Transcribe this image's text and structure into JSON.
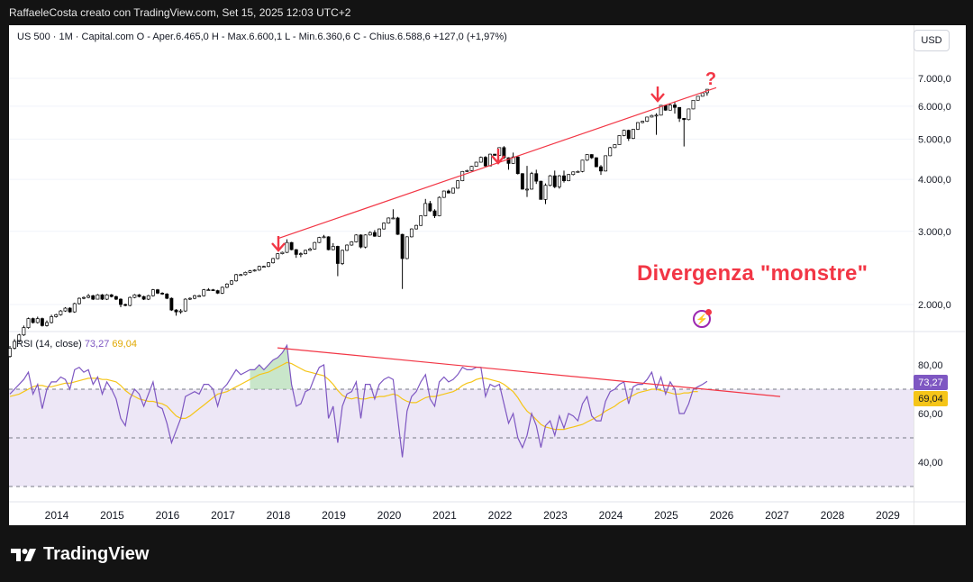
{
  "header": {
    "title": "RaffaeleCosta creato con TradingView.com, Set 15, 2025 12:03 UTC+2"
  },
  "legend": {
    "text": "US 500 · 1M · Capital.com  O - Aper.6.465,0  H - Max.6.600,1  L - Min.6.360,6  C - Chius.6.588,6  +127,0 (+1,97%)"
  },
  "currency_button": "USD",
  "annotations": {
    "note": "Divergenza \"monstre\"",
    "question": "?"
  },
  "rsi_legend": {
    "label": "RSI (14, close)",
    "value": "73,27",
    "ma_value": "69,04"
  },
  "rsi_tags": {
    "rsi": "73,27",
    "ma": "69,04"
  },
  "brand": {
    "name": "TradingView"
  },
  "colors": {
    "up": "#ffffff",
    "down": "#000000",
    "trendline": "#f23645",
    "rsi": "#7e57c2",
    "rsi_ma": "#f5c518",
    "band": "#ede7f6"
  },
  "chart_data": [
    {
      "type": "candlestick",
      "title": "US 500 · 1M · Capital.com",
      "y_ticks": [
        "7.000,0",
        "6.000,0",
        "5.000,0",
        "4.000,0",
        "3.000,0",
        "2.000,0"
      ],
      "y_tick_values": [
        7000,
        6000,
        5000,
        4000,
        3000,
        2000
      ],
      "x_ticks": [
        "2014",
        "2015",
        "2016",
        "2017",
        "2018",
        "2019",
        "2020",
        "2021",
        "2022",
        "2023",
        "2024",
        "2025",
        "2026",
        "2027",
        "2028",
        "2029"
      ],
      "ylim": [
        1550,
        7550
      ],
      "closes": [
        1570,
        1630,
        1690,
        1760,
        1850,
        1810,
        1850,
        1780,
        1810,
        1870,
        1890,
        1930,
        1960,
        1920,
        2010,
        2070,
        2080,
        2100,
        2060,
        2110,
        2060,
        2110,
        2090,
        2060,
        2000,
        1990,
        2080,
        2110,
        2090,
        2060,
        2100,
        2170,
        2130,
        2120,
        2070,
        1940,
        1920,
        1930,
        2060,
        2070,
        2100,
        2100,
        2170,
        2170,
        2160,
        2130,
        2200,
        2240,
        2280,
        2360,
        2360,
        2390,
        2410,
        2420,
        2470,
        2470,
        2520,
        2580,
        2650,
        2670,
        2820,
        2710,
        2640,
        2650,
        2700,
        2720,
        2820,
        2900,
        2910,
        2710,
        2760,
        2510,
        2700,
        2780,
        2830,
        2940,
        2750,
        2940,
        2980,
        2920,
        3040,
        3140,
        3230,
        3230,
        2950,
        2580,
        2910,
        3040,
        3100,
        3270,
        3500,
        3360,
        3270,
        3620,
        3750,
        3710,
        3810,
        3970,
        4180,
        4200,
        4300,
        4400,
        4520,
        4310,
        4600,
        4570,
        4770,
        4510,
        4370,
        4530,
        4130,
        3790,
        3790,
        4130,
        3960,
        3580,
        3870,
        4080,
        3840,
        4080,
        3970,
        4110,
        4170,
        4180,
        4450,
        4590,
        4510,
        4290,
        4190,
        4560,
        4770,
        4850,
        5100,
        5250,
        5020,
        5280,
        5480,
        5520,
        5650,
        5700,
        5710,
        6030,
        5870,
        6040,
        5960,
        5610,
        5570,
        5910,
        6200,
        6340,
        6460,
        6590
      ],
      "opens": [
        1500,
        1570,
        1630,
        1690,
        1760,
        1850,
        1810,
        1850,
        1780,
        1810,
        1870,
        1890,
        1930,
        1960,
        1920,
        2010,
        2070,
        2080,
        2100,
        2060,
        2110,
        2060,
        2110,
        2090,
        2060,
        2000,
        1990,
        2080,
        2110,
        2090,
        2060,
        2100,
        2170,
        2130,
        2120,
        2070,
        1940,
        1920,
        1930,
        2060,
        2070,
        2100,
        2100,
        2170,
        2170,
        2160,
        2130,
        2200,
        2240,
        2280,
        2360,
        2360,
        2390,
        2410,
        2420,
        2470,
        2470,
        2520,
        2580,
        2650,
        2670,
        2820,
        2710,
        2640,
        2650,
        2700,
        2720,
        2820,
        2900,
        2910,
        2710,
        2760,
        2510,
        2700,
        2780,
        2830,
        2940,
        2750,
        2940,
        2980,
        2920,
        3040,
        3140,
        3230,
        3230,
        2950,
        2580,
        2910,
        3040,
        3100,
        3270,
        3500,
        3360,
        3270,
        3620,
        3750,
        3710,
        3810,
        3970,
        4180,
        4200,
        4300,
        4400,
        4520,
        4310,
        4600,
        4570,
        4770,
        4510,
        4370,
        4530,
        4130,
        3790,
        3790,
        4130,
        3960,
        3580,
        3870,
        4080,
        3840,
        4080,
        3970,
        4110,
        4170,
        4180,
        4450,
        4590,
        4510,
        4290,
        4190,
        4560,
        4770,
        4850,
        5100,
        5250,
        5020,
        5280,
        5480,
        5520,
        5650,
        5700,
        5710,
        6030,
        5870,
        6040,
        5960,
        5610,
        5570,
        5910,
        6200,
        6340,
        6465
      ],
      "highs": [
        1590,
        1650,
        1700,
        1780,
        1860,
        1860,
        1870,
        1860,
        1830,
        1890,
        1900,
        1940,
        1970,
        1970,
        2020,
        2080,
        2090,
        2120,
        2110,
        2120,
        2120,
        2120,
        2120,
        2100,
        2070,
        2010,
        2090,
        2120,
        2120,
        2100,
        2110,
        2180,
        2180,
        2140,
        2130,
        2080,
        1950,
        1950,
        2070,
        2080,
        2110,
        2110,
        2180,
        2190,
        2180,
        2170,
        2210,
        2250,
        2290,
        2370,
        2370,
        2400,
        2420,
        2430,
        2480,
        2480,
        2530,
        2590,
        2660,
        2680,
        2870,
        2830,
        2720,
        2670,
        2710,
        2740,
        2830,
        2910,
        2940,
        2920,
        2810,
        2770,
        2710,
        2790,
        2840,
        2950,
        2950,
        2950,
        3000,
        3020,
        3050,
        3150,
        3240,
        3390,
        3250,
        2960,
        2920,
        3050,
        3110,
        3280,
        3590,
        3550,
        3390,
        3640,
        3760,
        3780,
        3820,
        3980,
        4190,
        4220,
        4310,
        4410,
        4540,
        4550,
        4610,
        4610,
        4780,
        4810,
        4520,
        4640,
        4540,
        4140,
        4310,
        4170,
        4220,
        3970,
        3910,
        4100,
        4200,
        4100,
        4200,
        4120,
        4180,
        4200,
        4460,
        4600,
        4600,
        4520,
        4330,
        4570,
        4790,
        4860,
        5110,
        5270,
        5270,
        5290,
        5490,
        5530,
        5660,
        5720,
        5770,
        6040,
        6050,
        6100,
        6140,
        5790,
        5620,
        5920,
        6210,
        6350,
        6470,
        6600
      ],
      "lows": [
        1490,
        1560,
        1620,
        1680,
        1750,
        1800,
        1800,
        1770,
        1770,
        1800,
        1860,
        1880,
        1920,
        1910,
        1910,
        2000,
        2060,
        2070,
        2050,
        2060,
        2050,
        2050,
        2080,
        2050,
        1970,
        1980,
        1980,
        2070,
        2080,
        2050,
        2050,
        2090,
        2120,
        2110,
        2060,
        1930,
        1880,
        1900,
        1920,
        2050,
        2060,
        2090,
        2090,
        2160,
        2160,
        2120,
        2120,
        2190,
        2230,
        2270,
        2350,
        2350,
        2380,
        2400,
        2410,
        2460,
        2460,
        2510,
        2570,
        2640,
        2660,
        2700,
        2590,
        2600,
        2640,
        2690,
        2710,
        2810,
        2890,
        2700,
        2700,
        2340,
        2490,
        2690,
        2770,
        2820,
        2730,
        2730,
        2930,
        2910,
        2910,
        3030,
        3130,
        3210,
        2940,
        2180,
        2570,
        2900,
        3030,
        3090,
        3260,
        3340,
        3230,
        3260,
        3610,
        3700,
        3700,
        3800,
        3960,
        4170,
        4190,
        4290,
        4390,
        4280,
        4300,
        4560,
        4560,
        4480,
        4220,
        4360,
        4110,
        3780,
        3630,
        3780,
        3900,
        3580,
        3490,
        3850,
        3810,
        3800,
        3930,
        3960,
        4090,
        4160,
        4160,
        4430,
        4480,
        4280,
        4100,
        4180,
        4550,
        4760,
        4840,
        5080,
        4950,
        5000,
        5260,
        5460,
        5500,
        5640,
        5120,
        5700,
        5850,
        5860,
        5760,
        5500,
        4800,
        5550,
        5900,
        6190,
        6330,
        6360
      ]
    },
    {
      "type": "line",
      "title": "RSI (14, close)",
      "series": [
        {
          "name": "RSI",
          "values": [
            68,
            70,
            72,
            74,
            77,
            68,
            72,
            62,
            70,
            73,
            73,
            75,
            74,
            70,
            78,
            79,
            77,
            78,
            72,
            75,
            68,
            73,
            70,
            66,
            58,
            55,
            66,
            70,
            68,
            63,
            68,
            73,
            63,
            62,
            56,
            48,
            53,
            58,
            67,
            68,
            69,
            68,
            72,
            72,
            70,
            63,
            70,
            72,
            75,
            78,
            76,
            77,
            78,
            78,
            80,
            78,
            80,
            82,
            83,
            85,
            88,
            72,
            63,
            64,
            69,
            70,
            75,
            79,
            80,
            58,
            63,
            48,
            63,
            68,
            69,
            73,
            58,
            72,
            72,
            66,
            72,
            74,
            75,
            74,
            58,
            42,
            61,
            67,
            69,
            73,
            76,
            66,
            63,
            73,
            75,
            73,
            74,
            76,
            79,
            78,
            78,
            79,
            79,
            67,
            72,
            71,
            72,
            64,
            56,
            60,
            50,
            46,
            51,
            60,
            55,
            46,
            55,
            57,
            51,
            59,
            54,
            60,
            59,
            57,
            64,
            67,
            59,
            57,
            57,
            65,
            69,
            70,
            72,
            73,
            64,
            71,
            72,
            72,
            74,
            77,
            70,
            75,
            68,
            73,
            70,
            60,
            60,
            64,
            70,
            71,
            72,
            73.27
          ]
        },
        {
          "name": "RSI MA",
          "values": [
            67,
            67.5,
            68,
            69,
            70,
            71,
            71.5,
            71.5,
            71,
            71,
            71.5,
            72,
            72.5,
            72.5,
            73,
            73.5,
            74,
            74.5,
            74.5,
            74.5,
            74,
            74,
            73.5,
            73,
            71.5,
            69.5,
            68,
            67,
            66,
            65.5,
            65,
            65,
            64.5,
            64,
            63,
            61,
            59,
            58,
            58,
            59,
            60.5,
            62,
            63.5,
            65,
            66.5,
            68,
            68.5,
            69,
            70,
            71,
            72,
            73,
            74,
            75,
            76,
            76.5,
            77,
            78,
            79,
            80,
            81,
            80.5,
            79.5,
            78.5,
            77.5,
            77,
            76.5,
            76,
            75.5,
            74,
            72,
            69.5,
            67.5,
            66.5,
            66,
            66.5,
            66,
            66,
            66.5,
            66.5,
            67,
            67,
            67.5,
            68,
            67.5,
            66,
            65,
            64.5,
            64.5,
            65.5,
            66.5,
            67,
            67,
            67.5,
            68,
            68.5,
            69,
            70,
            71.5,
            72.5,
            73,
            74,
            74.5,
            74.5,
            74,
            73.5,
            73,
            72,
            70.5,
            69,
            66.5,
            63.5,
            61,
            59.5,
            57.5,
            55.5,
            54.5,
            54,
            53.5,
            53.5,
            53.5,
            54,
            54.5,
            55,
            55.5,
            56.5,
            57.5,
            58.5,
            59.5,
            61,
            62,
            63,
            64.5,
            65.5,
            66.5,
            67.5,
            68.5,
            69,
            69.5,
            70,
            70,
            69.5,
            69,
            68.5,
            68,
            68,
            68.5,
            68.5,
            69,
            69.04
          ]
        }
      ],
      "y_ticks": [
        "80,00",
        "60,00",
        "40,00"
      ],
      "y_tick_values": [
        80,
        60,
        40
      ],
      "ylim": [
        26,
        100
      ],
      "band": [
        30,
        70
      ],
      "levels": [
        70,
        50,
        30
      ]
    }
  ]
}
